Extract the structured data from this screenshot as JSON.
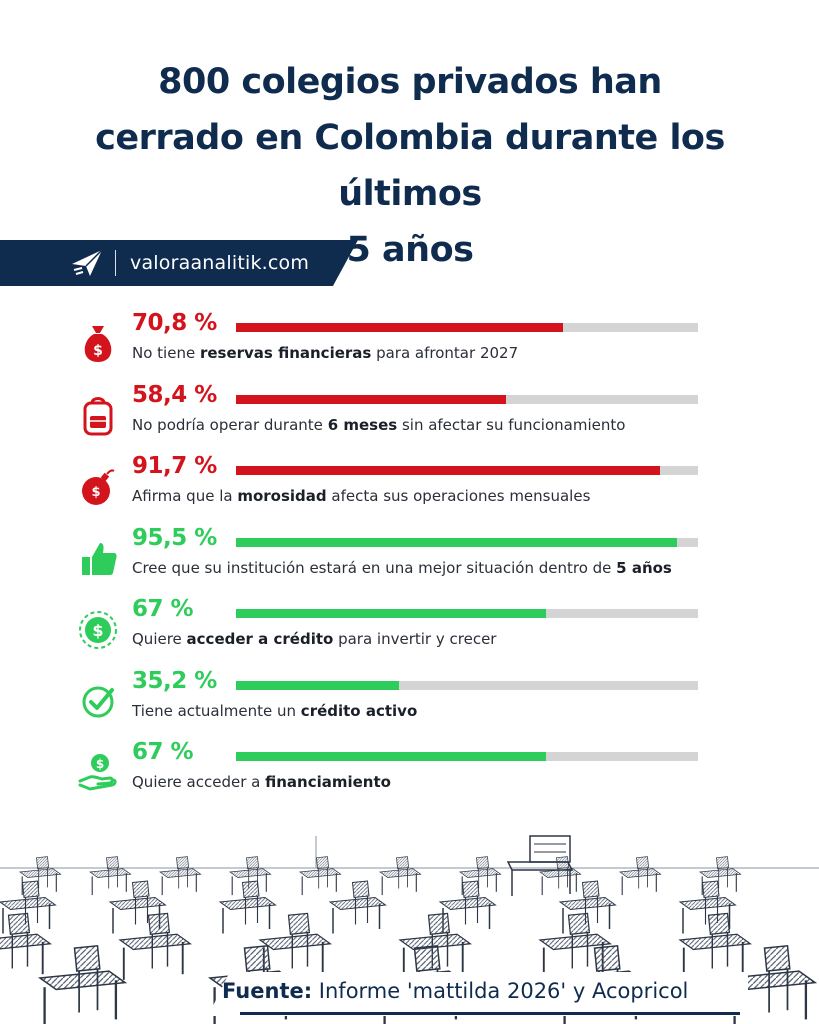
{
  "title": "800 colegios privados han cerrado en Colombia durante los últimos 5 años",
  "brand": {
    "site": "valoraanalitik.com",
    "logo_icon": "paper-plane-icon"
  },
  "colors": {
    "navy": "#0f2c4f",
    "red": "#d4141c",
    "green": "#2ecc5a",
    "track": "#d4d4d4"
  },
  "chart_data": {
    "type": "bar",
    "orientation": "horizontal",
    "value_max": 100,
    "unit": "%",
    "items": [
      {
        "value": 70.8,
        "label": "70,8 %",
        "color": "red",
        "icon": "money-bag-icon",
        "desc_parts": [
          "No tiene ",
          "reservas financieras",
          " para afrontar 2027"
        ]
      },
      {
        "value": 58.4,
        "label": "58,4 %",
        "color": "red",
        "icon": "backpack-icon",
        "desc_parts": [
          "No podría operar durante ",
          "6 meses",
          " sin afectar su funcionamiento"
        ]
      },
      {
        "value": 91.7,
        "label": "91,7 %",
        "color": "red",
        "icon": "money-bomb-icon",
        "desc_parts": [
          "Afirma que la ",
          "morosidad",
          " afecta sus operaciones mensuales"
        ]
      },
      {
        "value": 95.5,
        "label": "95,5 %",
        "color": "green",
        "icon": "thumbs-up-icon",
        "desc_parts": [
          "Cree que su institución estará en una mejor situación dentro de ",
          "5 años",
          ""
        ]
      },
      {
        "value": 67,
        "label": "67 %",
        "color": "green",
        "icon": "dollar-coin-icon",
        "desc_parts": [
          "Quiere ",
          "acceder a crédito",
          " para invertir y crecer"
        ]
      },
      {
        "value": 35.2,
        "label": "35,2 %",
        "color": "green",
        "icon": "check-circle-icon",
        "desc_parts": [
          "Tiene actualmente un ",
          "crédito activo",
          ""
        ]
      },
      {
        "value": 67,
        "label": "67 %",
        "color": "green",
        "icon": "hand-money-icon",
        "desc_parts": [
          "Quiere acceder a ",
          "financiamiento",
          ""
        ]
      }
    ]
  },
  "source": {
    "label": "Fuente:",
    "text": " Informe 'mattilda 2026' y Acopricol"
  },
  "illustration": {
    "icon": "classroom-desks-illustration"
  }
}
